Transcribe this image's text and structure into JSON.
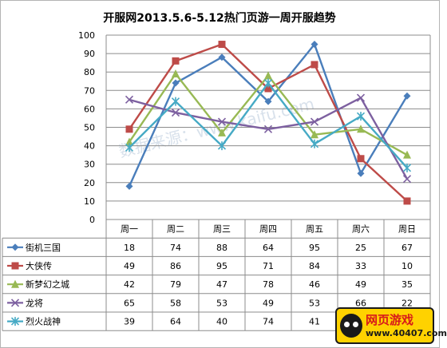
{
  "chart_data": {
    "type": "line",
    "title": "开服网2013.5.6-5.12热门页游一周开服趋势",
    "categories": [
      "周一",
      "周二",
      "周三",
      "周四",
      "周五",
      "周六",
      "周日"
    ],
    "ylim": [
      0,
      100
    ],
    "yticks": [
      0,
      10,
      20,
      30,
      40,
      50,
      60,
      70,
      80,
      90,
      100
    ],
    "grid": true,
    "legend": "data-table",
    "series": [
      {
        "name": "街机三国",
        "values": [
          18,
          74,
          88,
          64,
          95,
          25,
          67
        ],
        "color": "#4a7ebb",
        "marker": "diamond"
      },
      {
        "name": "大侠传",
        "values": [
          49,
          86,
          95,
          71,
          84,
          33,
          10
        ],
        "color": "#be4b48",
        "marker": "square"
      },
      {
        "name": "新梦幻之城",
        "values": [
          42,
          79,
          47,
          78,
          46,
          49,
          35
        ],
        "color": "#98b954",
        "marker": "triangle"
      },
      {
        "name": "龙将",
        "values": [
          65,
          58,
          53,
          49,
          53,
          66,
          22
        ],
        "color": "#7d60a0",
        "marker": "x"
      },
      {
        "name": "烈火战神",
        "values": [
          39,
          64,
          40,
          74,
          41,
          56,
          28
        ],
        "color": "#46aac5",
        "marker": "star"
      }
    ],
    "watermark": "数据来源：www.kaifu.com"
  },
  "logo": {
    "main": "网页游戏",
    "sub": "www.40407.com"
  }
}
